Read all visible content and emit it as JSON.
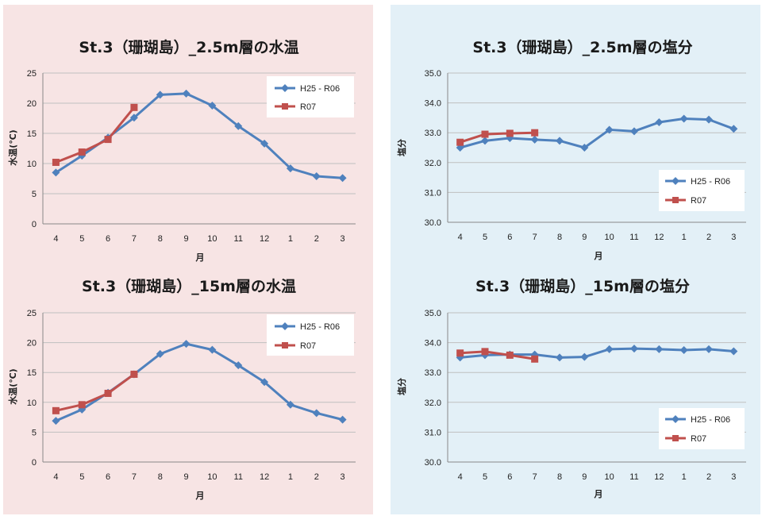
{
  "colors": {
    "temp_panel_bg": "#f7e4e4",
    "salinity_panel_bg": "#e3f0f7",
    "series_blue": "#4f81bd",
    "series_red": "#c0504d",
    "grid": "#bfbfbf"
  },
  "chart_data": [
    {
      "id": "temp-2_5m",
      "type": "line",
      "title": "St.3（珊瑚島）_2.5m層の水温",
      "xlabel": "月",
      "ylabel": "水温(℃)",
      "categories": [
        "4",
        "5",
        "6",
        "7",
        "8",
        "9",
        "10",
        "11",
        "12",
        "1",
        "2",
        "3"
      ],
      "ylim": [
        0,
        25
      ],
      "yticks": [
        "0",
        "5",
        "10",
        "15",
        "20",
        "25"
      ],
      "grid": true,
      "legend": "top-right",
      "series": [
        {
          "name": "H25 - R06",
          "marker": "diamond",
          "values": [
            8.5,
            11.3,
            14.3,
            17.6,
            21.4,
            21.6,
            19.6,
            16.2,
            13.3,
            9.2,
            7.9,
            7.6
          ]
        },
        {
          "name": "R07",
          "marker": "square",
          "values": [
            10.2,
            11.9,
            14.0,
            19.3,
            null,
            null,
            null,
            null,
            null,
            null,
            null,
            null
          ]
        }
      ]
    },
    {
      "id": "salinity-2_5m",
      "type": "line",
      "title": "St.3（珊瑚島）_2.5m層の塩分",
      "xlabel": "月",
      "ylabel": "塩分",
      "categories": [
        "4",
        "5",
        "6",
        "7",
        "8",
        "9",
        "10",
        "11",
        "12",
        "1",
        "2",
        "3"
      ],
      "ylim": [
        30,
        35
      ],
      "yticks": [
        "30.0",
        "31.0",
        "32.0",
        "33.0",
        "34.0",
        "35.0"
      ],
      "grid": true,
      "legend": "bottom-right",
      "series": [
        {
          "name": "H25 - R06",
          "marker": "diamond",
          "values": [
            32.5,
            32.73,
            32.82,
            32.77,
            32.73,
            32.5,
            33.1,
            33.05,
            33.35,
            33.47,
            33.44,
            33.13
          ]
        },
        {
          "name": "R07",
          "marker": "square",
          "values": [
            32.68,
            32.95,
            32.98,
            33.0,
            null,
            null,
            null,
            null,
            null,
            null,
            null,
            null
          ]
        }
      ]
    },
    {
      "id": "temp-15m",
      "type": "line",
      "title": "St.3（珊瑚島）_15m層の水温",
      "xlabel": "月",
      "ylabel": "水温(℃)",
      "categories": [
        "4",
        "5",
        "6",
        "7",
        "8",
        "9",
        "10",
        "11",
        "12",
        "1",
        "2",
        "3"
      ],
      "ylim": [
        0,
        25
      ],
      "yticks": [
        "0",
        "5",
        "10",
        "15",
        "20",
        "25"
      ],
      "grid": true,
      "legend": "top-right",
      "series": [
        {
          "name": "H25 - R06",
          "marker": "diamond",
          "values": [
            6.9,
            8.8,
            11.6,
            14.7,
            18.1,
            19.8,
            18.8,
            16.2,
            13.4,
            9.6,
            8.2,
            7.1
          ]
        },
        {
          "name": "R07",
          "marker": "square",
          "values": [
            8.6,
            9.6,
            11.5,
            14.7,
            null,
            null,
            null,
            null,
            null,
            null,
            null,
            null
          ]
        }
      ]
    },
    {
      "id": "salinity-15m",
      "type": "line",
      "title": "St.3（珊瑚島）_15m層の塩分",
      "xlabel": "月",
      "ylabel": "塩分",
      "categories": [
        "4",
        "5",
        "6",
        "7",
        "8",
        "9",
        "10",
        "11",
        "12",
        "1",
        "2",
        "3"
      ],
      "ylim": [
        30,
        35
      ],
      "yticks": [
        "30.0",
        "31.0",
        "32.0",
        "33.0",
        "34.0",
        "35.0"
      ],
      "grid": true,
      "legend": "bottom-right",
      "series": [
        {
          "name": "H25 - R06",
          "marker": "diamond",
          "values": [
            33.5,
            33.58,
            33.6,
            33.6,
            33.5,
            33.52,
            33.78,
            33.8,
            33.78,
            33.75,
            33.78,
            33.71
          ]
        },
        {
          "name": "R07",
          "marker": "square",
          "values": [
            33.65,
            33.7,
            33.58,
            33.45,
            null,
            null,
            null,
            null,
            null,
            null,
            null,
            null
          ]
        }
      ]
    }
  ]
}
